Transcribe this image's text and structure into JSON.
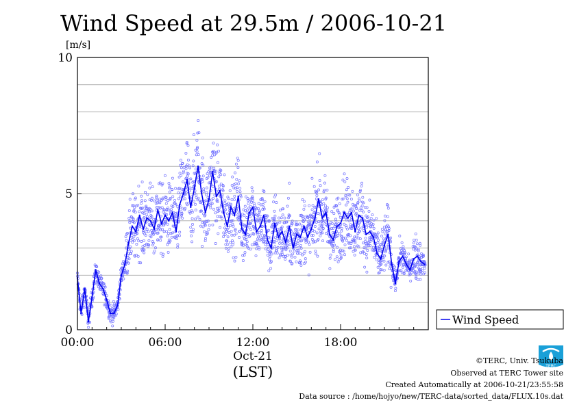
{
  "chart_data": {
    "type": "line",
    "title": "Wind Speed at 29.5m / 2006-10-21",
    "ylabel": "[m/s]",
    "ylim": [
      0,
      10
    ],
    "yticks": [
      "0",
      "5",
      "10"
    ],
    "xlim_hours": [
      0,
      24
    ],
    "xticks": [
      {
        "hour": 0,
        "label": "00:00"
      },
      {
        "hour": 6,
        "label": "06:00"
      },
      {
        "hour": 12,
        "label": "12:00"
      },
      {
        "hour": 18,
        "label": "18:00"
      }
    ],
    "date_label": "Oct-21",
    "timezone_label": "(LST)",
    "grid": true,
    "legend_position": "right",
    "series": [
      {
        "name": "Wind Speed",
        "color": "#0000ee",
        "x_hours": [
          0,
          0.25,
          0.5,
          0.75,
          1,
          1.25,
          1.5,
          1.75,
          2,
          2.25,
          2.5,
          2.75,
          3,
          3.25,
          3.5,
          3.75,
          4,
          4.25,
          4.5,
          4.75,
          5,
          5.25,
          5.5,
          5.75,
          6,
          6.25,
          6.5,
          6.75,
          7,
          7.25,
          7.5,
          7.75,
          8,
          8.25,
          8.5,
          8.75,
          9,
          9.25,
          9.5,
          9.75,
          10,
          10.25,
          10.5,
          10.75,
          11,
          11.25,
          11.5,
          11.75,
          12,
          12.25,
          12.5,
          12.75,
          13,
          13.25,
          13.5,
          13.75,
          14,
          14.25,
          14.5,
          14.75,
          15,
          15.25,
          15.5,
          15.75,
          16,
          16.25,
          16.5,
          16.75,
          17,
          17.25,
          17.5,
          17.75,
          18,
          18.25,
          18.5,
          18.75,
          19,
          19.25,
          19.5,
          19.75,
          20,
          20.25,
          20.5,
          20.75,
          21,
          21.25,
          21.5,
          21.75,
          22,
          22.25,
          22.5,
          22.75,
          23,
          23.25,
          23.5,
          23.75
        ],
        "values": [
          1.9,
          0.6,
          1.5,
          0.3,
          1.2,
          2.2,
          1.7,
          1.5,
          1.1,
          0.6,
          0.6,
          0.9,
          2.0,
          2.4,
          3.2,
          3.8,
          3.6,
          4.2,
          3.7,
          4.1,
          4.0,
          3.7,
          4.4,
          3.9,
          4.2,
          4.0,
          4.3,
          3.6,
          4.6,
          5.0,
          5.5,
          4.5,
          5.2,
          6.0,
          5.0,
          4.3,
          4.8,
          5.8,
          4.9,
          5.1,
          4.3,
          3.8,
          4.5,
          4.2,
          4.9,
          3.7,
          3.5,
          4.3,
          4.5,
          3.6,
          3.8,
          4.2,
          3.3,
          3.0,
          3.9,
          3.4,
          3.6,
          3.2,
          3.8,
          3.0,
          3.5,
          3.4,
          3.8,
          3.4,
          3.7,
          4.1,
          4.8,
          4.1,
          4.3,
          3.5,
          3.3,
          3.8,
          3.9,
          4.3,
          4.1,
          4.3,
          3.6,
          4.2,
          4.1,
          3.5,
          3.6,
          3.4,
          2.8,
          2.6,
          3.1,
          3.5,
          2.4,
          1.7,
          2.5,
          2.7,
          2.4,
          2.2,
          2.6,
          2.7,
          2.5,
          2.4
        ]
      }
    ]
  },
  "credits": {
    "copyright": "©TERC, Univ. Tsukuba",
    "observed": "Observed at TERC Tower site",
    "created": "Created Automatically at 2006-10-21/23:55:58",
    "source": "Data source : /home/hojyo/new/TERC-data/sorted_data/FLUX.10s.dat",
    "logo_text": "TERC"
  }
}
